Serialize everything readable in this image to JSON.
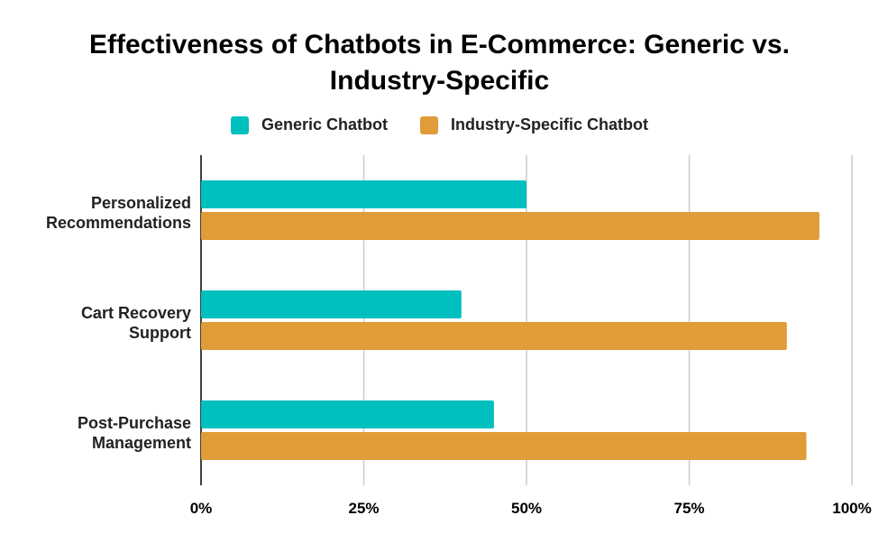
{
  "chart_data": {
    "type": "bar",
    "orientation": "horizontal",
    "title_lines": [
      "Effectiveness of Chatbots in E-Commerce: Generic vs.",
      "Industry-Specific"
    ],
    "categories": [
      [
        "Personalized",
        "Recommendations"
      ],
      [
        "Cart Recovery",
        "Support"
      ],
      [
        "Post-Purchase",
        "Management"
      ]
    ],
    "series": [
      {
        "name": "Generic Chatbot",
        "color": "#00bfbf",
        "values": [
          50,
          40,
          45
        ]
      },
      {
        "name": "Industry-Specific Chatbot",
        "color": "#e09c38",
        "values": [
          95,
          90,
          93
        ]
      }
    ],
    "xlim": [
      0,
      100
    ],
    "xticks": [
      0,
      25,
      50,
      75,
      100
    ],
    "tick_suffix": "%",
    "grid": true,
    "legend_position": "top"
  }
}
